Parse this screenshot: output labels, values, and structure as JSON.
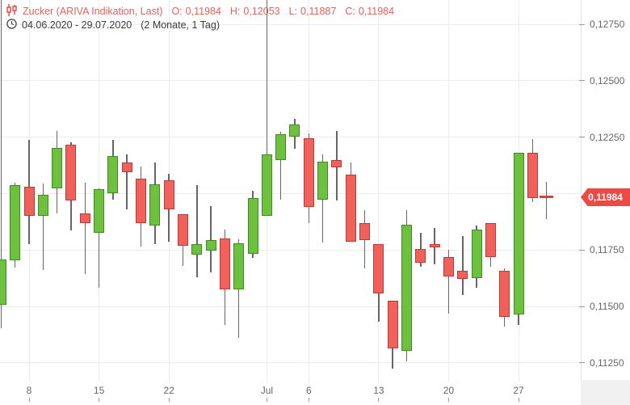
{
  "header": {
    "instrument": "Zucker (ARIVA Indikation, Last)",
    "ohlc": [
      {
        "label": "O:",
        "value": "0,11984"
      },
      {
        "label": "H:",
        "value": "0,12053"
      },
      {
        "label": "L:",
        "value": "0,11887"
      },
      {
        "label": "C:",
        "value": "0,11984"
      }
    ],
    "date_range": "04.06.2020 - 29.07.2020",
    "period": "(2 Monate, 1 Tag)"
  },
  "y_axis": {
    "labels": [
      {
        "text": "0,12750",
        "value": 0.1275
      },
      {
        "text": "0,12500",
        "value": 0.125
      },
      {
        "text": "0,12250",
        "value": 0.1225
      },
      {
        "text": "0,11750",
        "value": 0.1175
      },
      {
        "text": "0,11500",
        "value": 0.115
      },
      {
        "text": "0,11250",
        "value": 0.1125
      }
    ],
    "badge": {
      "text": "0,11984",
      "value": 0.11984,
      "color": "#ec4b45"
    }
  },
  "x_axis": {
    "labels": [
      {
        "text": "8",
        "bar_index": 2
      },
      {
        "text": "15",
        "bar_index": 7
      },
      {
        "text": "22",
        "bar_index": 12
      },
      {
        "text": "Jul",
        "bar_index": 19
      },
      {
        "text": "6",
        "bar_index": 22
      },
      {
        "text": "13",
        "bar_index": 27
      },
      {
        "text": "20",
        "bar_index": 32
      },
      {
        "text": "27",
        "bar_index": 37
      }
    ]
  },
  "chart_data": {
    "type": "candlestick",
    "title": "Zucker (ARIVA Indikation, Last)",
    "date_range": "04.06.2020 - 29.07.2020",
    "ylim": [
      0.11175,
      0.12857
    ],
    "grid_prices": [
      0.1275,
      0.125,
      0.1225,
      0.12,
      0.1175,
      0.115,
      0.1125
    ],
    "grid": true,
    "up_color": "#6dc13e",
    "down_color": "#f0615c",
    "last_price": 0.11984,
    "candles": [
      {
        "d": "04.06.",
        "o": 0.11507,
        "h": 0.12857,
        "l": 0.11404,
        "c": 0.11707,
        "h_clipped": true
      },
      {
        "d": "05.06.",
        "o": 0.11704,
        "h": 0.1205,
        "l": 0.11671,
        "c": 0.12036
      },
      {
        "d": "08.06.",
        "o": 0.12029,
        "h": 0.12239,
        "l": 0.11775,
        "c": 0.119
      },
      {
        "d": "09.06.",
        "o": 0.119,
        "h": 0.12043,
        "l": 0.11661,
        "c": 0.11993
      },
      {
        "d": "10.06.",
        "o": 0.12025,
        "h": 0.12279,
        "l": 0.11911,
        "c": 0.12204
      },
      {
        "d": "11.06.",
        "o": 0.12218,
        "h": 0.12229,
        "l": 0.11836,
        "c": 0.11968
      },
      {
        "d": "12.06.",
        "o": 0.11911,
        "h": 0.12047,
        "l": 0.11643,
        "c": 0.11868
      },
      {
        "d": "15.06.",
        "o": 0.11825,
        "h": 0.12025,
        "l": 0.11582,
        "c": 0.12018
      },
      {
        "d": "16.06.",
        "o": 0.12003,
        "h": 0.12238,
        "l": 0.11972,
        "c": 0.12167
      },
      {
        "d": "17.06.",
        "o": 0.12137,
        "h": 0.12175,
        "l": 0.11931,
        "c": 0.12095
      },
      {
        "d": "18.06.",
        "o": 0.12068,
        "h": 0.12119,
        "l": 0.11764,
        "c": 0.11871
      },
      {
        "d": "19.06.",
        "o": 0.11857,
        "h": 0.12139,
        "l": 0.11776,
        "c": 0.12042
      },
      {
        "d": "22.06.",
        "o": 0.1206,
        "h": 0.12089,
        "l": 0.11788,
        "c": 0.11929
      },
      {
        "d": "23.06.",
        "o": 0.11907,
        "h": 0.11907,
        "l": 0.11679,
        "c": 0.11768
      },
      {
        "d": "24.06.",
        "o": 0.11729,
        "h": 0.12038,
        "l": 0.11631,
        "c": 0.11776
      },
      {
        "d": "25.06.",
        "o": 0.11746,
        "h": 0.11946,
        "l": 0.1165,
        "c": 0.11793
      },
      {
        "d": "26.06.",
        "o": 0.118,
        "h": 0.11842,
        "l": 0.11419,
        "c": 0.11574
      },
      {
        "d": "29.06.",
        "o": 0.11574,
        "h": 0.11797,
        "l": 0.1136,
        "c": 0.1178
      },
      {
        "d": "30.06.",
        "o": 0.11735,
        "h": 0.12014,
        "l": 0.11717,
        "c": 0.11982
      },
      {
        "d": "01.07.",
        "o": 0.11903,
        "h": 0.12857,
        "l": 0.11903,
        "c": 0.12175,
        "h_clipped": true
      },
      {
        "d": "02.07.",
        "o": 0.12149,
        "h": 0.12274,
        "l": 0.11974,
        "c": 0.12264
      },
      {
        "d": "03.07.",
        "o": 0.12253,
        "h": 0.1233,
        "l": 0.12199,
        "c": 0.12306
      },
      {
        "d": "06.07.",
        "o": 0.12246,
        "h": 0.12268,
        "l": 0.11869,
        "c": 0.1194
      },
      {
        "d": "07.07.",
        "o": 0.11974,
        "h": 0.12173,
        "l": 0.11782,
        "c": 0.12143
      },
      {
        "d": "08.07.",
        "o": 0.12149,
        "h": 0.12279,
        "l": 0.1197,
        "c": 0.12117
      },
      {
        "d": "09.07.",
        "o": 0.12083,
        "h": 0.12137,
        "l": 0.11788,
        "c": 0.11788
      },
      {
        "d": "10.07.",
        "o": 0.11869,
        "h": 0.11926,
        "l": 0.11669,
        "c": 0.11795
      },
      {
        "d": "13.07.",
        "o": 0.11776,
        "h": 0.11776,
        "l": 0.11431,
        "c": 0.11557
      },
      {
        "d": "14.07.",
        "o": 0.11526,
        "h": 0.11526,
        "l": 0.11224,
        "c": 0.11315
      },
      {
        "d": "15.07.",
        "o": 0.11304,
        "h": 0.11926,
        "l": 0.11256,
        "c": 0.11863
      },
      {
        "d": "16.07.",
        "o": 0.11754,
        "h": 0.11825,
        "l": 0.11675,
        "c": 0.11693
      },
      {
        "d": "17.07.",
        "o": 0.11776,
        "h": 0.11849,
        "l": 0.11685,
        "c": 0.11763
      },
      {
        "d": "20.07.",
        "o": 0.1172,
        "h": 0.1175,
        "l": 0.1147,
        "c": 0.11633
      },
      {
        "d": "21.07.",
        "o": 0.11657,
        "h": 0.11812,
        "l": 0.1155,
        "c": 0.11621
      },
      {
        "d": "22.07.",
        "o": 0.11625,
        "h": 0.1186,
        "l": 0.11583,
        "c": 0.11839
      },
      {
        "d": "23.07.",
        "o": 0.11871,
        "h": 0.11871,
        "l": 0.11676,
        "c": 0.1172
      },
      {
        "d": "24.07.",
        "o": 0.11657,
        "h": 0.11669,
        "l": 0.11411,
        "c": 0.11455
      },
      {
        "d": "27.07.",
        "o": 0.11464,
        "h": 0.12181,
        "l": 0.11419,
        "c": 0.12181
      },
      {
        "d": "28.07.",
        "o": 0.12181,
        "h": 0.1224,
        "l": 0.11962,
        "c": 0.11982
      },
      {
        "d": "29.07.",
        "o": 0.11984,
        "h": 0.12053,
        "l": 0.11887,
        "c": 0.11984
      }
    ]
  }
}
